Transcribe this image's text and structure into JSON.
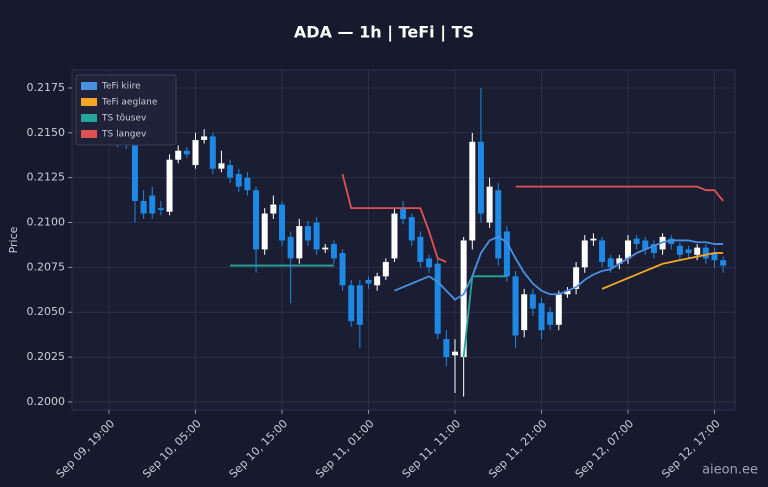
{
  "chart_data": {
    "type": "candlestick",
    "title": "ADA — 1h  |  TeFi  |  TS",
    "y_label": "Price",
    "watermark": "aieon.ee",
    "legend": "upper left",
    "grid": true,
    "up_color": "#ffffff",
    "down_color": "#1e88e5",
    "categories": [
      "Sep 09, 19:00",
      null,
      null,
      null,
      null,
      null,
      null,
      null,
      null,
      null,
      "Sep 10, 05:00",
      null,
      null,
      null,
      null,
      null,
      null,
      null,
      null,
      null,
      "Sep 10, 15:00",
      null,
      null,
      null,
      null,
      null,
      null,
      null,
      null,
      null,
      "Sep 11, 01:00",
      null,
      null,
      null,
      null,
      null,
      null,
      null,
      null,
      null,
      "Sep 11, 11:00",
      null,
      null,
      null,
      null,
      null,
      null,
      null,
      null,
      null,
      "Sep 11, 21:00",
      null,
      null,
      null,
      null,
      null,
      null,
      null,
      null,
      null,
      "Sep 12, 07:00",
      null,
      null,
      null,
      null,
      null,
      null,
      null,
      null,
      null,
      "Sep 12, 17:00",
      null
    ],
    "open": [
      0.215,
      0.2149,
      0.2148,
      0.2145,
      0.2112,
      0.2115,
      0.2108,
      0.2106,
      0.2135,
      0.214,
      0.2132,
      0.2146,
      0.2148,
      0.213,
      0.2132,
      0.2127,
      0.2125,
      0.2118,
      0.2085,
      0.2105,
      0.211,
      0.2092,
      0.208,
      0.2098,
      0.21,
      0.2085,
      0.2088,
      0.2083,
      0.2065,
      0.2065,
      0.2068,
      0.2065,
      0.207,
      0.208,
      0.2108,
      0.2103,
      0.2092,
      0.208,
      0.2077,
      0.2035,
      0.2026,
      0.2025,
      0.209,
      0.2145,
      0.21,
      0.2118,
      0.2095,
      0.207,
      0.204,
      0.206,
      0.2055,
      0.205,
      0.2043,
      0.206,
      0.2063,
      0.2075,
      0.209,
      0.209,
      0.208,
      0.2077,
      0.208,
      0.2091,
      0.209,
      0.2088,
      0.2085,
      0.2091,
      0.2087,
      0.2085,
      0.2082,
      0.2086,
      0.2083,
      0.2079
    ],
    "high": [
      0.2153,
      0.2152,
      0.215,
      0.2147,
      0.2118,
      0.212,
      0.2112,
      0.2138,
      0.2143,
      0.2142,
      0.215,
      0.2152,
      0.215,
      0.214,
      0.2135,
      0.213,
      0.2128,
      0.212,
      0.2108,
      0.2115,
      0.2112,
      0.2095,
      0.2102,
      0.2101,
      0.2103,
      0.2088,
      0.209,
      0.2085,
      0.2068,
      0.2068,
      0.207,
      0.2072,
      0.208,
      0.2108,
      0.2112,
      0.2105,
      0.2095,
      0.2082,
      0.208,
      0.204,
      0.2035,
      0.2092,
      0.215,
      0.2175,
      0.2125,
      0.2122,
      0.2098,
      0.2073,
      0.2063,
      0.2063,
      0.2058,
      0.2053,
      0.2062,
      0.2064,
      0.2078,
      0.2093,
      0.2094,
      0.2092,
      0.2082,
      0.2082,
      0.2093,
      0.2093,
      0.2092,
      0.209,
      0.2094,
      0.2093,
      0.2089,
      0.2087,
      0.2088,
      0.2088,
      0.2086,
      0.2081
    ],
    "low": [
      0.2144,
      0.2142,
      0.2141,
      0.21,
      0.2102,
      0.2102,
      0.2104,
      0.2104,
      0.2133,
      0.2136,
      0.213,
      0.2144,
      0.2127,
      0.2128,
      0.2122,
      0.2117,
      0.2115,
      0.2072,
      0.2082,
      0.2102,
      0.2087,
      0.2055,
      0.2077,
      0.2087,
      0.2082,
      0.2083,
      0.2077,
      0.2062,
      0.2042,
      0.203,
      0.2063,
      0.2062,
      0.2068,
      0.2078,
      0.2099,
      0.2087,
      0.2075,
      0.2072,
      0.2035,
      0.202,
      0.2005,
      0.2003,
      0.2085,
      0.21,
      0.2097,
      0.2076,
      0.2067,
      0.203,
      0.2036,
      0.2048,
      0.2035,
      0.204,
      0.204,
      0.2058,
      0.206,
      0.2072,
      0.2087,
      0.2075,
      0.2072,
      0.2074,
      0.2077,
      0.2085,
      0.2082,
      0.208,
      0.2082,
      0.2085,
      0.2079,
      0.208,
      0.2079,
      0.2077,
      0.2075,
      0.2072
    ],
    "close": [
      0.2147,
      0.2145,
      0.2144,
      0.2112,
      0.2105,
      0.2105,
      0.2107,
      0.2135,
      0.214,
      0.2138,
      0.2146,
      0.2148,
      0.213,
      0.2133,
      0.2125,
      0.212,
      0.2118,
      0.2085,
      0.2105,
      0.211,
      0.209,
      0.208,
      0.2098,
      0.209,
      0.2085,
      0.2086,
      0.208,
      0.2065,
      0.2045,
      0.2043,
      0.2066,
      0.207,
      0.2078,
      0.2105,
      0.2102,
      0.209,
      0.2078,
      0.2075,
      0.2038,
      0.2025,
      0.2028,
      0.209,
      0.2145,
      0.2105,
      0.212,
      0.208,
      0.207,
      0.2037,
      0.206,
      0.2052,
      0.204,
      0.2043,
      0.206,
      0.2062,
      0.2075,
      0.209,
      0.2091,
      0.2078,
      0.2075,
      0.208,
      0.209,
      0.2088,
      0.2085,
      0.2083,
      0.2092,
      0.2088,
      0.2082,
      0.2083,
      0.2086,
      0.208,
      0.2079,
      0.2076
    ],
    "series": [
      {
        "name": "TeFi kiire",
        "color": "#4a90e2",
        "values": [
          null,
          null,
          null,
          null,
          null,
          null,
          null,
          null,
          null,
          null,
          null,
          null,
          null,
          null,
          null,
          null,
          null,
          null,
          null,
          null,
          null,
          null,
          null,
          null,
          null,
          null,
          null,
          null,
          null,
          null,
          null,
          null,
          null,
          0.2062,
          0.2064,
          0.2066,
          0.2068,
          0.207,
          0.2067,
          0.2062,
          0.2057,
          0.206,
          0.207,
          0.2083,
          0.209,
          0.2092,
          0.2089,
          0.208,
          0.2072,
          0.2066,
          0.2062,
          0.206,
          0.206,
          0.2062,
          0.2064,
          0.2068,
          0.2071,
          0.2073,
          0.2074,
          0.2077,
          0.208,
          0.2083,
          0.2085,
          0.2087,
          0.2089,
          0.209,
          0.209,
          0.209,
          0.2089,
          0.2089,
          0.2088,
          0.2088
        ]
      },
      {
        "name": "TeFi aeglane",
        "color": "#f5a623",
        "values": [
          null,
          null,
          null,
          null,
          null,
          null,
          null,
          null,
          null,
          null,
          null,
          null,
          null,
          null,
          null,
          null,
          null,
          null,
          null,
          null,
          null,
          null,
          null,
          null,
          null,
          null,
          null,
          null,
          null,
          null,
          null,
          null,
          null,
          null,
          null,
          null,
          null,
          null,
          null,
          null,
          null,
          null,
          null,
          null,
          null,
          null,
          null,
          null,
          null,
          null,
          null,
          null,
          null,
          null,
          null,
          null,
          null,
          0.2063,
          0.2065,
          0.2067,
          0.2069,
          0.2071,
          0.2073,
          0.2075,
          0.2077,
          0.2078,
          0.2079,
          0.208,
          0.2081,
          0.2082,
          0.2083,
          0.2083
        ]
      },
      {
        "name": "TS tõusev",
        "color": "#26a69a",
        "values": [
          null,
          null,
          null,
          null,
          null,
          null,
          null,
          null,
          null,
          null,
          null,
          null,
          null,
          null,
          0.2076,
          0.2076,
          0.2076,
          0.2076,
          0.2076,
          0.2076,
          0.2076,
          0.2076,
          0.2076,
          0.2076,
          0.2076,
          0.2076,
          0.2076,
          null,
          null,
          null,
          null,
          null,
          null,
          null,
          null,
          null,
          null,
          null,
          null,
          null,
          null,
          0.2025,
          0.207,
          0.207,
          0.207,
          0.207,
          0.207,
          null,
          null,
          null,
          null,
          null,
          null,
          null,
          null,
          null,
          null,
          null,
          null,
          null,
          null,
          null,
          null,
          null,
          null,
          null,
          null,
          null,
          null,
          null,
          null,
          null
        ]
      },
      {
        "name": "TS langev",
        "color": "#e05252",
        "values": [
          null,
          null,
          null,
          null,
          null,
          null,
          null,
          null,
          null,
          null,
          null,
          null,
          null,
          null,
          null,
          null,
          null,
          null,
          null,
          null,
          null,
          null,
          null,
          null,
          null,
          null,
          null,
          0.2127,
          0.2108,
          0.2108,
          0.2108,
          0.2108,
          0.2108,
          0.2108,
          0.2108,
          0.2108,
          0.2108,
          0.2095,
          0.208,
          0.2078,
          null,
          null,
          null,
          null,
          null,
          null,
          null,
          0.212,
          0.212,
          0.212,
          0.212,
          0.212,
          0.212,
          0.212,
          0.212,
          0.212,
          0.212,
          0.212,
          0.212,
          0.212,
          0.212,
          0.212,
          0.212,
          0.212,
          0.212,
          0.212,
          0.212,
          0.212,
          0.212,
          0.2118,
          0.2118,
          0.2112
        ]
      }
    ],
    "ylim": [
      0.19955,
      0.2185
    ],
    "yticks": [
      {
        "value": 0.2,
        "label": "0.2000"
      },
      {
        "value": 0.2025,
        "label": "0.2025"
      },
      {
        "value": 0.205,
        "label": "0.2050"
      },
      {
        "value": 0.2075,
        "label": "0.2075"
      },
      {
        "value": 0.21,
        "label": "0.2100"
      },
      {
        "value": 0.2125,
        "label": "0.2125"
      },
      {
        "value": 0.215,
        "label": "0.2150"
      },
      {
        "value": 0.2175,
        "label": "0.2175"
      }
    ]
  }
}
